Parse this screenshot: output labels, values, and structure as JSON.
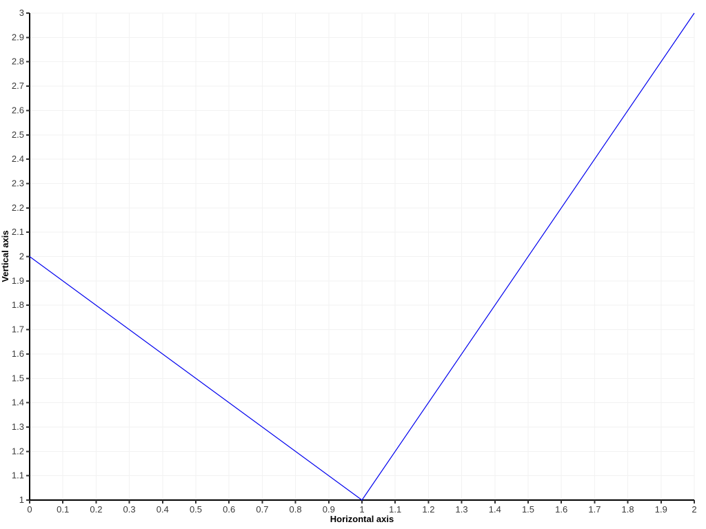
{
  "page": {
    "background": "#ffffff"
  },
  "chart_data": {
    "type": "line",
    "title": "",
    "xlabel": "Horizontal axis",
    "ylabel": "Vertical axis",
    "xlim": [
      0,
      2
    ],
    "ylim": [
      1,
      3
    ],
    "x": [
      0,
      1,
      2
    ],
    "y": [
      2,
      1,
      3
    ],
    "xtick_labels": [
      "0",
      "0.1",
      "0.2",
      "0.3",
      "0.4",
      "0.5",
      "0.6",
      "0.7",
      "0.8",
      "0.9",
      "1",
      "1.1",
      "1.2",
      "1.3",
      "1.4",
      "1.5",
      "1.6",
      "1.7",
      "1.8",
      "1.9",
      "2"
    ],
    "ytick_labels": [
      "1",
      "1.1",
      "1.2",
      "1.3",
      "1.4",
      "1.5",
      "1.6",
      "1.7",
      "1.8",
      "1.9",
      "2",
      "2.1",
      "2.2",
      "2.3",
      "2.4",
      "2.5",
      "2.6",
      "2.7",
      "2.8",
      "2.9",
      "3"
    ],
    "grid": true,
    "legend": false,
    "colors": {
      "line": "#0000ee",
      "grid": "#f2f2f2",
      "axis": "#000000",
      "tick": "#333333",
      "tick_label": "#3a3a3a",
      "axis_title": "#000000",
      "background": "#ffffff"
    }
  }
}
